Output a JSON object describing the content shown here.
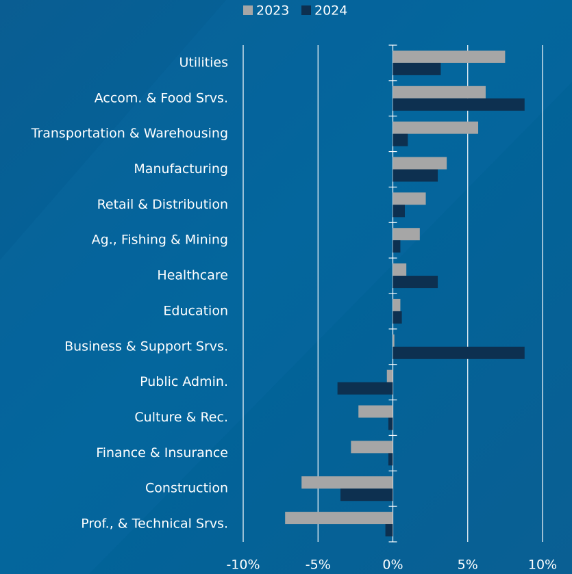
{
  "chart_data": {
    "type": "bar",
    "orientation": "horizontal",
    "categories": [
      "Utilities",
      "Accom. & Food Srvs.",
      "Transportation & Warehousing",
      "Manufacturing",
      "Retail & Distribution",
      "Ag., Fishing & Mining",
      "Healthcare",
      "Education",
      "Business & Support Srvs.",
      "Public Admin.",
      "Culture & Rec.",
      "Finance & Insurance",
      "Construction",
      "Prof., & Technical Srvs."
    ],
    "series": [
      {
        "name": "2023",
        "color": "#a6a6a6",
        "values": [
          7.5,
          6.2,
          5.7,
          3.6,
          2.2,
          1.8,
          0.9,
          0.5,
          0.1,
          -0.4,
          -2.3,
          -2.8,
          -6.1,
          -7.2
        ]
      },
      {
        "name": "2024",
        "color": "#0d3050",
        "values": [
          3.2,
          8.8,
          1.0,
          3.0,
          0.8,
          0.5,
          3.0,
          0.6,
          8.8,
          -3.7,
          -0.3,
          -0.3,
          -3.5,
          -0.5
        ]
      }
    ],
    "xlim": [
      -10,
      10
    ],
    "xticks": [
      {
        "value": -10,
        "label": "-10%"
      },
      {
        "value": -5,
        "label": "-5%"
      },
      {
        "value": 0,
        "label": "0%"
      },
      {
        "value": 5,
        "label": "5%"
      },
      {
        "value": 10,
        "label": "10%"
      }
    ],
    "grid": true,
    "legend": "top"
  }
}
